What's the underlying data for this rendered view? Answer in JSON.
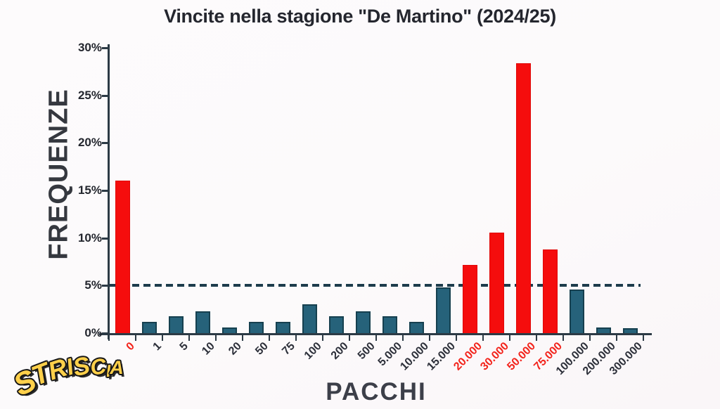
{
  "title": "Vincite nella stagione \"De Martino\" (2024/25)",
  "y_axis": {
    "label": "FREQUENZE"
  },
  "x_axis": {
    "label": "PACCHI"
  },
  "logo": {
    "text": "STRISCIA"
  },
  "colors": {
    "bar_default": "#26627a",
    "bar_default_border": "#16404f",
    "bar_highlight": "#f50d0d",
    "axis": "#2c3a45",
    "reference_line": "#1d3c4c",
    "label_default": "#2c2f39",
    "label_highlight": "#f3231b",
    "title_text": "#24262e",
    "logo_fill": "#ffd04a"
  },
  "chart_data": {
    "type": "bar",
    "title": "Vincite nella stagione \"De Martino\" (2024/25)",
    "xlabel": "PACCHI",
    "ylabel": "FREQUENZE",
    "ylim": [
      0,
      30
    ],
    "y_ticks_percent": [
      0,
      5,
      10,
      15,
      20,
      25,
      30
    ],
    "y_tick_suffix": "%",
    "grid": false,
    "legend": false,
    "reference_line": {
      "value": 5,
      "style": "dashed"
    },
    "categories": [
      "0",
      "1",
      "5",
      "10",
      "20",
      "50",
      "75",
      "100",
      "200",
      "500",
      "5.000",
      "10.000",
      "15.000",
      "20.000",
      "30.000",
      "50.000",
      "75.000",
      "100.000",
      "200.000",
      "300.000"
    ],
    "values": [
      16.0,
      1.2,
      1.8,
      2.3,
      0.6,
      1.2,
      1.2,
      3.0,
      1.8,
      2.3,
      1.8,
      1.2,
      4.8,
      7.2,
      10.6,
      28.4,
      8.8,
      4.6,
      0.6,
      0.5
    ],
    "highlighted_categories": [
      "0",
      "20.000",
      "30.000",
      "50.000",
      "75.000"
    ]
  }
}
